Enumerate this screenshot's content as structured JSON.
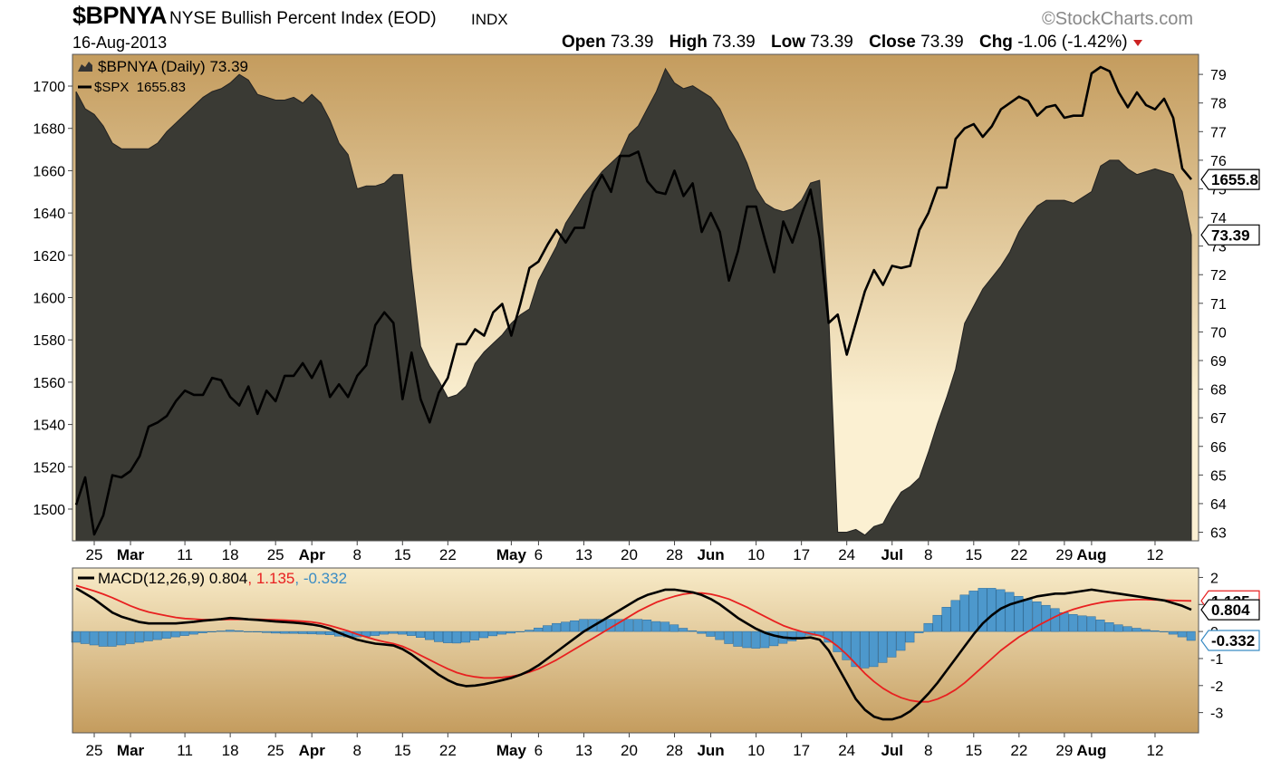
{
  "header": {
    "symbol": "$BPNYA",
    "description": "NYSE Bullish Percent Index (EOD)",
    "exchange": "INDX",
    "brand": "©StockCharts.com",
    "date": "16-Aug-2013",
    "open_label": "Open",
    "open": "73.39",
    "high_label": "High",
    "high": "73.39",
    "low_label": "Low",
    "low": "73.39",
    "close_label": "Close",
    "close": "73.39",
    "chg_label": "Chg",
    "chg": "-1.06 (-1.42%)",
    "chg_arrow_color": "#cc2222"
  },
  "chart_data": [
    {
      "type": "area",
      "legend": [
        {
          "label": "$BPNYA (Daily) 73.39",
          "marker": "area-icon"
        },
        {
          "label": "$SPX  1655.83",
          "marker": "line"
        }
      ],
      "x": [
        "2013-02-21",
        "2013-02-22",
        "2013-02-25",
        "2013-02-26",
        "2013-02-27",
        "2013-02-28",
        "2013-03-01",
        "2013-03-04",
        "2013-03-05",
        "2013-03-06",
        "2013-03-07",
        "2013-03-08",
        "2013-03-11",
        "2013-03-12",
        "2013-03-13",
        "2013-03-14",
        "2013-03-15",
        "2013-03-18",
        "2013-03-19",
        "2013-03-20",
        "2013-03-21",
        "2013-03-22",
        "2013-03-25",
        "2013-03-26",
        "2013-03-27",
        "2013-03-28",
        "2013-04-01",
        "2013-04-02",
        "2013-04-03",
        "2013-04-04",
        "2013-04-05",
        "2013-04-08",
        "2013-04-09",
        "2013-04-10",
        "2013-04-11",
        "2013-04-12",
        "2013-04-15",
        "2013-04-16",
        "2013-04-17",
        "2013-04-18",
        "2013-04-19",
        "2013-04-22",
        "2013-04-23",
        "2013-04-24",
        "2013-04-25",
        "2013-04-26",
        "2013-04-29",
        "2013-04-30",
        "2013-05-01",
        "2013-05-02",
        "2013-05-03",
        "2013-05-06",
        "2013-05-07",
        "2013-05-08",
        "2013-05-09",
        "2013-05-10",
        "2013-05-13",
        "2013-05-14",
        "2013-05-15",
        "2013-05-16",
        "2013-05-17",
        "2013-05-20",
        "2013-05-21",
        "2013-05-22",
        "2013-05-23",
        "2013-05-24",
        "2013-05-28",
        "2013-05-29",
        "2013-05-30",
        "2013-05-31",
        "2013-06-03",
        "2013-06-04",
        "2013-06-05",
        "2013-06-06",
        "2013-06-07",
        "2013-06-10",
        "2013-06-11",
        "2013-06-12",
        "2013-06-13",
        "2013-06-14",
        "2013-06-17",
        "2013-06-18",
        "2013-06-19",
        "2013-06-20",
        "2013-06-21",
        "2013-06-24",
        "2013-06-25",
        "2013-06-26",
        "2013-06-27",
        "2013-06-28",
        "2013-07-01",
        "2013-07-02",
        "2013-07-03",
        "2013-07-05",
        "2013-07-08",
        "2013-07-09",
        "2013-07-10",
        "2013-07-11",
        "2013-07-12",
        "2013-07-15",
        "2013-07-16",
        "2013-07-17",
        "2013-07-18",
        "2013-07-19",
        "2013-07-22",
        "2013-07-23",
        "2013-07-24",
        "2013-07-25",
        "2013-07-26",
        "2013-07-29",
        "2013-07-30",
        "2013-07-31",
        "2013-08-01",
        "2013-08-02",
        "2013-08-05",
        "2013-08-06",
        "2013-08-07",
        "2013-08-08",
        "2013-08-09",
        "2013-08-12",
        "2013-08-13",
        "2013-08-14",
        "2013-08-15",
        "2013-08-16"
      ],
      "series": [
        {
          "name": "$BPNYA",
          "axis": "right",
          "values": [
            78.4,
            77.8,
            77.6,
            77.2,
            76.6,
            76.4,
            76.4,
            76.4,
            76.4,
            76.6,
            77.0,
            77.3,
            77.6,
            77.9,
            78.2,
            78.4,
            78.5,
            78.7,
            79.0,
            78.8,
            78.3,
            78.2,
            78.1,
            78.1,
            78.2,
            78.0,
            78.3,
            78.0,
            77.4,
            76.6,
            76.2,
            75.0,
            75.1,
            75.1,
            75.2,
            75.5,
            75.5,
            72.2,
            69.5,
            68.8,
            68.3,
            67.7,
            67.8,
            68.1,
            68.9,
            69.3,
            69.6,
            69.9,
            70.3,
            70.6,
            70.8,
            71.8,
            72.4,
            73.0,
            73.8,
            74.3,
            74.8,
            75.2,
            75.6,
            75.9,
            76.2,
            76.9,
            77.2,
            77.8,
            78.4,
            79.2,
            78.7,
            78.5,
            78.6,
            78.4,
            78.2,
            77.8,
            77.1,
            76.6,
            75.9,
            75.0,
            74.5,
            74.3,
            74.2,
            74.3,
            74.6,
            75.2,
            75.3,
            70.6,
            63.0,
            63.0,
            63.1,
            62.9,
            63.2,
            63.3,
            63.9,
            64.4,
            64.6,
            64.9,
            65.8,
            66.8,
            67.7,
            68.7,
            70.3,
            70.9,
            71.5,
            71.9,
            72.3,
            72.8,
            73.5,
            74.0,
            74.4,
            74.6,
            74.6,
            74.6,
            74.5,
            74.7,
            74.9,
            75.8,
            76.0,
            76.0,
            75.7,
            75.5,
            75.6,
            75.7,
            75.6,
            75.5,
            74.9,
            73.39
          ]
        },
        {
          "name": "$SPX",
          "axis": "left",
          "values": [
            1502,
            1515,
            1488,
            1497,
            1516,
            1515,
            1518,
            1525,
            1539,
            1541,
            1544,
            1551,
            1556,
            1554,
            1554,
            1562,
            1561,
            1553,
            1549,
            1558,
            1545,
            1556,
            1551,
            1563,
            1563,
            1569,
            1562,
            1570,
            1553,
            1559,
            1553,
            1563,
            1568,
            1587,
            1593,
            1588,
            1552,
            1574,
            1552,
            1541,
            1555,
            1562,
            1578,
            1578,
            1585,
            1582,
            1593,
            1597,
            1582,
            1597,
            1614,
            1617,
            1625,
            1632,
            1626,
            1633,
            1633,
            1650,
            1658,
            1650,
            1667,
            1667,
            1669,
            1655,
            1650,
            1649,
            1660,
            1648,
            1654,
            1631,
            1640,
            1631,
            1608,
            1622,
            1643,
            1643,
            1627,
            1612,
            1636,
            1626,
            1639,
            1651,
            1628,
            1588,
            1592,
            1573,
            1588,
            1603,
            1613,
            1606,
            1615,
            1614,
            1615,
            1632,
            1640,
            1652,
            1652,
            1675,
            1680,
            1682,
            1676,
            1681,
            1689,
            1692,
            1695,
            1693,
            1686,
            1690,
            1691,
            1685,
            1686,
            1686,
            1706,
            1709,
            1707,
            1697,
            1690,
            1697,
            1691,
            1689,
            1694,
            1685,
            1661,
            1655.83
          ]
        }
      ],
      "ylim_left": [
        1485,
        1715
      ],
      "ylim_right": [
        62.7,
        79.7
      ],
      "yticks_left": [
        "1500",
        "1520",
        "1540",
        "1560",
        "1580",
        "1600",
        "1620",
        "1640",
        "1660",
        "1680",
        "1700"
      ],
      "yticks_right": [
        "63",
        "64",
        "65",
        "66",
        "67",
        "68",
        "69",
        "70",
        "71",
        "72",
        "73",
        "74",
        "75",
        "76",
        "77",
        "78",
        "79"
      ],
      "xticks": [
        {
          "label": "25",
          "date": "2013-02-25",
          "bold": false
        },
        {
          "label": "Mar",
          "date": "2013-03-01",
          "bold": true
        },
        {
          "label": "11",
          "date": "2013-03-11",
          "bold": false
        },
        {
          "label": "18",
          "date": "2013-03-18",
          "bold": false
        },
        {
          "label": "25",
          "date": "2013-03-25",
          "bold": false
        },
        {
          "label": "Apr",
          "date": "2013-04-01",
          "bold": true
        },
        {
          "label": "8",
          "date": "2013-04-08",
          "bold": false
        },
        {
          "label": "15",
          "date": "2013-04-15",
          "bold": false
        },
        {
          "label": "22",
          "date": "2013-04-22",
          "bold": false
        },
        {
          "label": "May",
          "date": "2013-05-01",
          "bold": true
        },
        {
          "label": "6",
          "date": "2013-05-06",
          "bold": false
        },
        {
          "label": "13",
          "date": "2013-05-13",
          "bold": false
        },
        {
          "label": "20",
          "date": "2013-05-20",
          "bold": false
        },
        {
          "label": "28",
          "date": "2013-05-28",
          "bold": false
        },
        {
          "label": "Jun",
          "date": "2013-06-03",
          "bold": true
        },
        {
          "label": "10",
          "date": "2013-06-10",
          "bold": false
        },
        {
          "label": "17",
          "date": "2013-06-17",
          "bold": false
        },
        {
          "label": "24",
          "date": "2013-06-24",
          "bold": false
        },
        {
          "label": "Jul",
          "date": "2013-07-01",
          "bold": true
        },
        {
          "label": "8",
          "date": "2013-07-08",
          "bold": false
        },
        {
          "label": "15",
          "date": "2013-07-15",
          "bold": false
        },
        {
          "label": "22",
          "date": "2013-07-22",
          "bold": false
        },
        {
          "label": "29",
          "date": "2013-07-29",
          "bold": false
        },
        {
          "label": "Aug",
          "date": "2013-08-01",
          "bold": true
        },
        {
          "label": "12",
          "date": "2013-08-12",
          "bold": false
        }
      ],
      "badges": [
        {
          "label": "1655.8",
          "series": "$SPX"
        },
        {
          "label": "73.39",
          "series": "$BPNYA"
        }
      ],
      "colors": {
        "area_fill": "#3a3a34",
        "line": "#000000",
        "bg_light": "#fbf0d2",
        "bg_dark": "#c49c5e"
      }
    },
    {
      "type": "line",
      "legend": [
        {
          "label": "MACD(12,26,9) 0.804",
          "color": "#000000"
        },
        {
          "label": ", 1.135",
          "color": "#e82020"
        },
        {
          "label": ", -0.332",
          "color": "#3a8cc4"
        }
      ],
      "series": [
        {
          "name": "MACD",
          "color": "#000000",
          "values": [
            1.6,
            1.4,
            1.2,
            0.95,
            0.7,
            0.55,
            0.45,
            0.35,
            0.3,
            0.3,
            0.3,
            0.3,
            0.33,
            0.36,
            0.4,
            0.43,
            0.46,
            0.5,
            0.48,
            0.45,
            0.43,
            0.4,
            0.37,
            0.35,
            0.33,
            0.3,
            0.26,
            0.2,
            0.1,
            -0.05,
            -0.18,
            -0.3,
            -0.38,
            -0.45,
            -0.48,
            -0.52,
            -0.65,
            -0.85,
            -1.1,
            -1.35,
            -1.6,
            -1.8,
            -1.95,
            -2.02,
            -2.0,
            -1.95,
            -1.88,
            -1.8,
            -1.72,
            -1.6,
            -1.45,
            -1.25,
            -1.0,
            -0.75,
            -0.5,
            -0.25,
            0.0,
            0.2,
            0.4,
            0.6,
            0.8,
            1.0,
            1.2,
            1.35,
            1.45,
            1.55,
            1.55,
            1.5,
            1.45,
            1.35,
            1.2,
            1.0,
            0.75,
            0.5,
            0.3,
            0.1,
            -0.05,
            -0.15,
            -0.22,
            -0.25,
            -0.25,
            -0.22,
            -0.3,
            -0.7,
            -1.3,
            -1.9,
            -2.5,
            -2.9,
            -3.15,
            -3.25,
            -3.25,
            -3.15,
            -2.95,
            -2.65,
            -2.3,
            -1.9,
            -1.45,
            -1.0,
            -0.55,
            -0.1,
            0.3,
            0.6,
            0.85,
            1.0,
            1.1,
            1.2,
            1.3,
            1.35,
            1.4,
            1.4,
            1.45,
            1.5,
            1.55,
            1.5,
            1.45,
            1.4,
            1.35,
            1.3,
            1.25,
            1.2,
            1.15,
            1.05,
            0.95,
            0.804
          ]
        },
        {
          "name": "Signal",
          "color": "#e82020",
          "values": [
            1.7,
            1.6,
            1.5,
            1.38,
            1.25,
            1.1,
            0.95,
            0.82,
            0.72,
            0.65,
            0.58,
            0.52,
            0.48,
            0.46,
            0.44,
            0.44,
            0.44,
            0.45,
            0.45,
            0.45,
            0.45,
            0.44,
            0.43,
            0.42,
            0.4,
            0.38,
            0.35,
            0.3,
            0.22,
            0.12,
            0.02,
            -0.1,
            -0.2,
            -0.3,
            -0.38,
            -0.45,
            -0.55,
            -0.7,
            -0.88,
            -1.05,
            -1.22,
            -1.38,
            -1.52,
            -1.62,
            -1.68,
            -1.72,
            -1.72,
            -1.7,
            -1.66,
            -1.6,
            -1.5,
            -1.38,
            -1.22,
            -1.05,
            -0.85,
            -0.65,
            -0.45,
            -0.25,
            -0.05,
            0.15,
            0.35,
            0.55,
            0.75,
            0.92,
            1.08,
            1.2,
            1.3,
            1.38,
            1.42,
            1.42,
            1.38,
            1.3,
            1.2,
            1.05,
            0.9,
            0.72,
            0.55,
            0.38,
            0.22,
            0.1,
            0.0,
            -0.08,
            -0.15,
            -0.3,
            -0.55,
            -0.85,
            -1.2,
            -1.55,
            -1.85,
            -2.1,
            -2.3,
            -2.45,
            -2.55,
            -2.6,
            -2.6,
            -2.5,
            -2.35,
            -2.15,
            -1.9,
            -1.6,
            -1.3,
            -1.0,
            -0.7,
            -0.45,
            -0.2,
            0.0,
            0.2,
            0.38,
            0.55,
            0.7,
            0.82,
            0.92,
            1.0,
            1.07,
            1.12,
            1.15,
            1.17,
            1.18,
            1.18,
            1.17,
            1.16,
            1.15,
            1.14,
            1.135
          ]
        },
        {
          "name": "Histogram",
          "color": "#3a8cc4",
          "style": "bars",
          "values": [
            -0.4,
            -0.45,
            -0.5,
            -0.55,
            -0.55,
            -0.5,
            -0.45,
            -0.4,
            -0.35,
            -0.3,
            -0.25,
            -0.2,
            -0.15,
            -0.1,
            -0.05,
            -0.02,
            0.02,
            0.05,
            0.03,
            0.0,
            -0.02,
            -0.04,
            -0.06,
            -0.07,
            -0.07,
            -0.08,
            -0.09,
            -0.1,
            -0.12,
            -0.17,
            -0.2,
            -0.2,
            -0.18,
            -0.15,
            -0.1,
            -0.07,
            -0.1,
            -0.15,
            -0.22,
            -0.3,
            -0.38,
            -0.42,
            -0.43,
            -0.4,
            -0.32,
            -0.23,
            -0.16,
            -0.1,
            -0.06,
            0.0,
            0.05,
            0.13,
            0.22,
            0.3,
            0.35,
            0.4,
            0.45,
            0.45,
            0.45,
            0.45,
            0.45,
            0.45,
            0.45,
            0.43,
            0.37,
            0.35,
            0.25,
            0.12,
            0.03,
            -0.07,
            -0.18,
            -0.3,
            -0.45,
            -0.55,
            -0.6,
            -0.62,
            -0.6,
            -0.53,
            -0.44,
            -0.35,
            -0.25,
            -0.14,
            -0.15,
            -0.4,
            -0.75,
            -1.05,
            -1.3,
            -1.35,
            -1.3,
            -1.15,
            -0.95,
            -0.7,
            -0.4,
            -0.05,
            0.3,
            0.6,
            0.9,
            1.15,
            1.35,
            1.5,
            1.6,
            1.6,
            1.55,
            1.45,
            1.3,
            1.2,
            1.1,
            0.97,
            0.85,
            0.7,
            0.63,
            0.58,
            0.55,
            0.43,
            0.33,
            0.25,
            0.18,
            0.12,
            0.07,
            0.03,
            -0.01,
            -0.1,
            -0.2,
            -0.332
          ]
        }
      ],
      "ylim": [
        -3.75,
        2.35
      ],
      "yticks": [
        "-3",
        "-2",
        "-1",
        "0",
        "1",
        "2"
      ],
      "badges": [
        {
          "label": "1.135",
          "series": "Signal"
        },
        {
          "label": "0.804",
          "series": "MACD"
        },
        {
          "label": "-0.332",
          "series": "Histogram"
        }
      ]
    }
  ]
}
